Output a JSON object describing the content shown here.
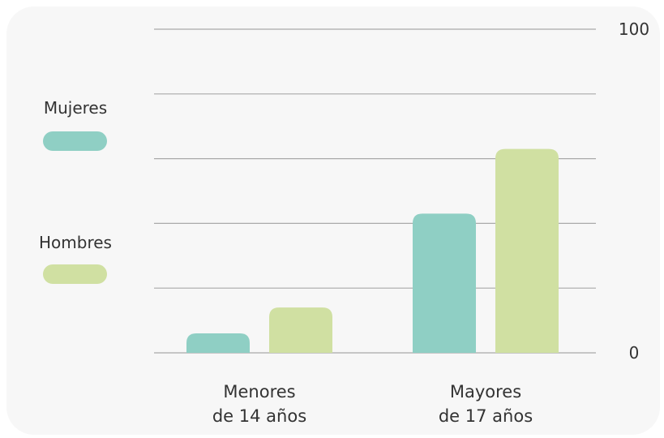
{
  "chart_data": {
    "type": "bar",
    "title": "",
    "xlabel": "",
    "ylabel": "",
    "ylim": [
      0,
      100
    ],
    "grid": true,
    "legend_position": "left",
    "categories": [
      [
        "Menores",
        "de 14 años"
      ],
      [
        "Mayores",
        "de 17 años"
      ]
    ],
    "y_tick_labels": [
      {
        "value": 100,
        "label": "100"
      },
      {
        "value": 0,
        "label": "0"
      }
    ],
    "gridline_values": [
      0,
      20,
      40,
      60,
      80,
      100
    ],
    "series": [
      {
        "name": "Mujeres",
        "color": "#8fcfc4",
        "values": [
          6,
          43
        ]
      },
      {
        "name": "Hombres",
        "color": "#d0e0a2",
        "values": [
          14,
          63
        ]
      }
    ]
  }
}
